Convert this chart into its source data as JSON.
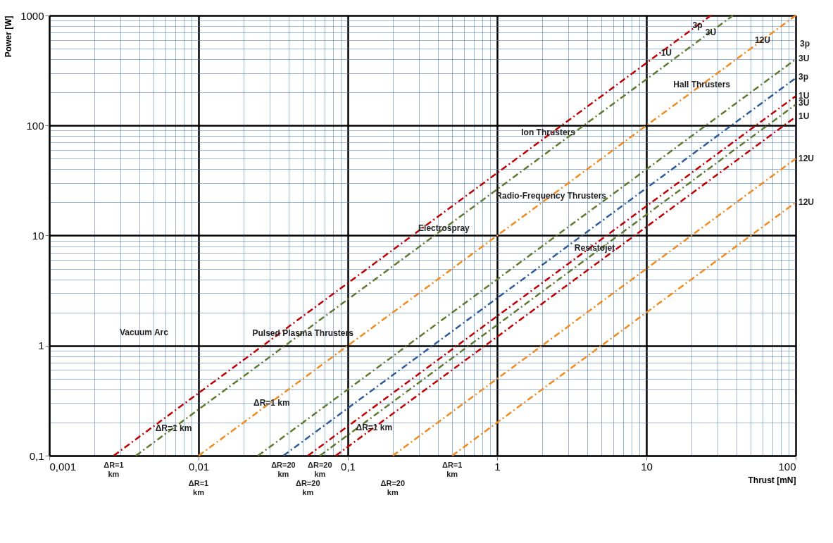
{
  "chart_data": {
    "type": "line",
    "xlabel": "Thrust [mN]",
    "ylabel": "Power [W]",
    "log": "xy",
    "grid": true,
    "line_style": "dashed",
    "xlim": [
      0.001,
      100
    ],
    "ylim": [
      0.1,
      1000
    ],
    "xticks": [
      {
        "value": 0.001,
        "label": "0,001"
      },
      {
        "value": 0.002,
        "label": null
      },
      {
        "value": 0.003,
        "label": null
      },
      {
        "value": 0.004,
        "label": null
      },
      {
        "value": 0.005,
        "label": null
      },
      {
        "value": 0.006,
        "label": null
      },
      {
        "value": 0.007,
        "label": null
      },
      {
        "value": 0.008,
        "label": null
      },
      {
        "value": 0.009,
        "label": null
      },
      {
        "value": 0.01,
        "label": "0,01"
      },
      {
        "value": 0.02,
        "label": null
      },
      {
        "value": 0.03,
        "label": null
      },
      {
        "value": 0.04,
        "label": null
      },
      {
        "value": 0.05,
        "label": null
      },
      {
        "value": 0.06,
        "label": null
      },
      {
        "value": 0.07,
        "label": null
      },
      {
        "value": 0.08,
        "label": null
      },
      {
        "value": 0.09,
        "label": null
      },
      {
        "value": 0.1,
        "label": "0,1"
      },
      {
        "value": 0.2,
        "label": null
      },
      {
        "value": 0.3,
        "label": null
      },
      {
        "value": 0.4,
        "label": null
      },
      {
        "value": 0.5,
        "label": null
      },
      {
        "value": 0.6,
        "label": null
      },
      {
        "value": 0.7,
        "label": null
      },
      {
        "value": 0.8,
        "label": null
      },
      {
        "value": 0.9,
        "label": null
      },
      1,
      {
        "value": 2,
        "label": null
      },
      {
        "value": 3,
        "label": null
      },
      {
        "value": 4,
        "label": null
      },
      {
        "value": 5,
        "label": null
      },
      {
        "value": 6,
        "label": null
      },
      {
        "value": 7,
        "label": null
      },
      {
        "value": 8,
        "label": null
      },
      {
        "value": 9,
        "label": null
      },
      10,
      {
        "value": 20,
        "label": null
      },
      {
        "value": 30,
        "label": null
      },
      {
        "value": 40,
        "label": null
      },
      {
        "value": 50,
        "label": null
      },
      {
        "value": 60,
        "label": null
      },
      {
        "value": 70,
        "label": null
      },
      {
        "value": 80,
        "label": null
      },
      {
        "value": 90,
        "label": null
      },
      100
    ],
    "yticks": [
      {
        "value": 0.1,
        "label": "0,1"
      },
      {
        "value": 0.2,
        "label": null
      },
      {
        "value": 0.3,
        "label": null
      },
      {
        "value": 0.4,
        "label": null
      },
      {
        "value": 0.5,
        "label": null
      },
      {
        "value": 0.6,
        "label": null
      },
      {
        "value": 0.7,
        "label": null
      },
      {
        "value": 0.8,
        "label": null
      },
      {
        "value": 0.9,
        "label": null
      },
      1,
      {
        "value": 2,
        "label": null
      },
      {
        "value": 3,
        "label": null
      },
      {
        "value": 4,
        "label": null
      },
      {
        "value": 5,
        "label": null
      },
      {
        "value": 6,
        "label": null
      },
      {
        "value": 7,
        "label": null
      },
      {
        "value": 8,
        "label": null
      },
      {
        "value": 9,
        "label": null
      },
      10,
      {
        "value": 20,
        "label": null
      },
      {
        "value": 30,
        "label": null
      },
      {
        "value": 40,
        "label": null
      },
      {
        "value": 50,
        "label": null
      },
      {
        "value": 60,
        "label": null
      },
      {
        "value": 70,
        "label": null
      },
      {
        "value": 80,
        "label": null
      },
      {
        "value": 90,
        "label": null
      },
      100,
      {
        "value": 200,
        "label": null
      },
      {
        "value": 300,
        "label": null
      },
      {
        "value": 400,
        "label": null
      },
      {
        "value": 500,
        "label": null
      },
      {
        "value": 600,
        "label": null
      },
      {
        "value": 700,
        "label": null
      },
      {
        "value": 800,
        "label": null
      },
      {
        "value": 900,
        "label": null
      },
      1000
    ],
    "series": [
      {
        "color": "#c00000",
        "x": [
          0.0027,
          27
        ],
        "values": [
          0.1,
          1000
        ]
      },
      {
        "color": "#5f7a2e",
        "x": [
          0.0038,
          38
        ],
        "values": [
          0.1,
          1000
        ]
      },
      {
        "color": "#f28a1e",
        "x": [
          0.01,
          100
        ],
        "values": [
          0.1,
          1000
        ]
      },
      {
        "color": "#5f7a2e",
        "x": [
          0.025,
          100
        ],
        "values": [
          0.1,
          400
        ]
      },
      {
        "color": "#2e5b9a",
        "x": [
          0.037,
          100
        ],
        "values": [
          0.1,
          270
        ]
      },
      {
        "color": "#c00000",
        "x": [
          0.054,
          100
        ],
        "values": [
          0.1,
          185
        ]
      },
      {
        "color": "#5f7a2e",
        "x": [
          0.065,
          100
        ],
        "values": [
          0.1,
          155
        ]
      },
      {
        "color": "#c00000",
        "x": [
          0.083,
          100
        ],
        "values": [
          0.1,
          120
        ]
      },
      {
        "color": "#f28a1e",
        "x": [
          0.2,
          100
        ],
        "values": [
          0.1,
          50
        ]
      },
      {
        "color": "#f28a1e",
        "x": [
          0.5,
          100
        ],
        "values": [
          0.1,
          20
        ]
      }
    ],
    "annotations": [
      "Vacuum Arc",
      {
        "text": "Pulsed Plasma Thrusters",
        "x": 0.05,
        "y": 1.3
      },
      {
        "text": "Electrospray",
        "x": 0.44,
        "y": 11.7
      },
      {
        "text": "Radio-Frequency Thrusters",
        "x": 2.3,
        "y": 23
      },
      {
        "text": "Ion Thrusters",
        "x": 2.2,
        "y": 87
      },
      {
        "text": "Hall Thrusters",
        "x": 23.5,
        "y": 235
      },
      {
        "text": "Resistojet",
        "x": 4.5,
        "y": 7.7
      },
      {
        "text": "3p",
        "x": 22,
        "y": 814
      },
      {
        "text": "1U",
        "x": 13.6,
        "y": 460
      },
      {
        "text": "3U",
        "x": 27,
        "y": 702
      },
      {
        "text": "12U",
        "x": 60,
        "y": 600
      },
      "3p",
      {
        "text": "3U",
        "x": 100,
        "y": 405
      },
      {
        "text": "3p",
        "x": 100,
        "y": 278
      },
      {
        "text": "1U",
        "x": 100,
        "y": 187
      },
      {
        "text": "3U",
        "x": 100,
        "y": 160
      },
      {
        "text": "1U",
        "x": 100,
        "y": 122
      },
      {
        "text": "12U",
        "x": 100,
        "y": 50
      },
      {
        "text": "12U",
        "x": 100,
        "y": 20
      },
      {
        "text": "ΔR=1 km",
        "x": 0.0068,
        "y": 0.177
      },
      "ΔR=1 km",
      {
        "text": "ΔR=1 km",
        "x": 0.15,
        "y": 0.18
      },
      {
        "text": "ΔR=1 km",
        "x": 0.0027,
        "y": 0.1
      },
      {
        "text": "ΔR=1 km",
        "x": 0.01,
        "y": 0.1
      },
      {
        "text": "ΔR=20 km",
        "x": 0.037,
        "y": 0.1
      },
      {
        "text": "ΔR=20 km",
        "x": 0.054,
        "y": 0.1
      },
      {
        "text": "ΔR=20 km",
        "x": 0.065,
        "y": 0.1
      },
      {
        "text": "ΔR=20 km",
        "x": 0.2,
        "y": 0.1
      },
      {
        "text": "ΔR=1 km",
        "x": 0.5,
        "y": 0.1
      }
    ]
  }
}
